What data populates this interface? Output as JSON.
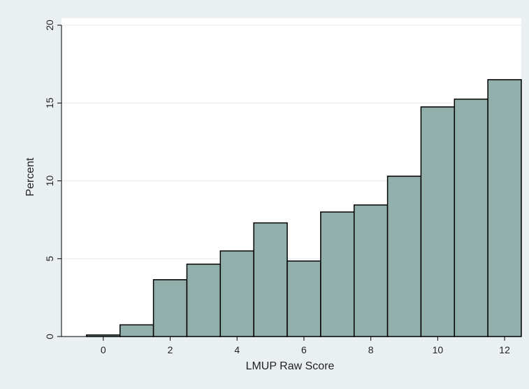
{
  "chart_data": {
    "type": "bar",
    "xlabel": "LMUP Raw Score",
    "ylabel": "Percent",
    "x": [
      0,
      1,
      2,
      3,
      4,
      5,
      6,
      7,
      8,
      9,
      10,
      11,
      12
    ],
    "values": [
      0.1,
      0.75,
      3.65,
      4.65,
      5.5,
      7.3,
      4.85,
      8.0,
      8.45,
      10.3,
      14.75,
      15.25,
      16.5
    ],
    "xlim": [
      -1.25,
      12.5
    ],
    "ylim": [
      0,
      20
    ],
    "xticks": [
      0,
      2,
      4,
      6,
      8,
      10,
      12
    ],
    "yticks": [
      0,
      5,
      10,
      15,
      20
    ],
    "grid": true,
    "colors": {
      "background": "#eaf0f2",
      "plot_area": "#ffffff",
      "bar_fill": "#91b0ab",
      "bar_edge": "#000000",
      "gridline": "#eaf0f2"
    }
  }
}
